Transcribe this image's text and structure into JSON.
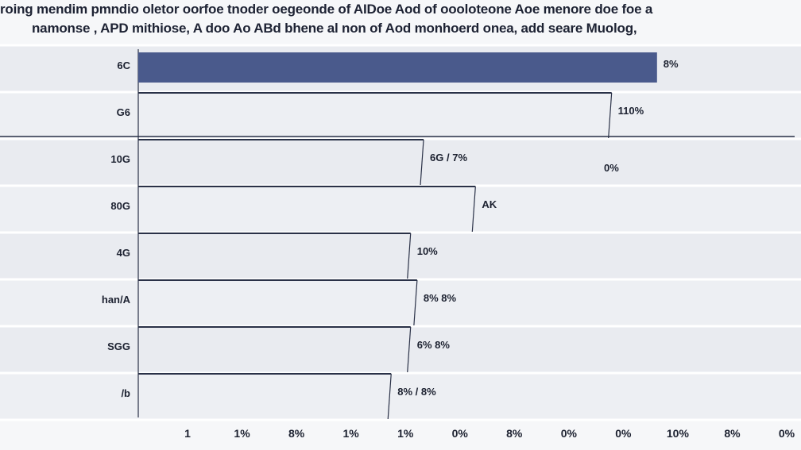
{
  "title": {
    "line1": "roing mendim pmndio oletor oorfoe tnoder oegeonde of AIDoe Aod of oooloteone Aoe menore doe foe a",
    "line2": "namonse , APD mithiose,        A doo Ao ABd bhene al non of Aod monhoerd onea, add seare Muolog,"
  },
  "chart_data": {
    "type": "bar",
    "orientation": "horizontal",
    "title": "roing mendim pmndio oletor oorfoe tnoder oegeonde of AIDoe Aod of oooloteone Aoe menore doe foe a namonse , APD mithiose, A doo Ao ABd bhene al non of Aod monhoerd onea, add seare Muolog,",
    "categories": [
      "6C",
      "G6",
      "10G",
      "80G",
      "4G",
      "han/A",
      "SGG",
      "/b"
    ],
    "values": [
      80,
      73,
      44,
      52,
      42,
      43,
      42,
      39
    ],
    "value_labels": [
      "8%",
      "110%",
      "6G / 7%",
      "AK",
      "10%",
      "8% 8%",
      "6% 8%",
      "8% / 8%"
    ],
    "extra_labels": [
      "0%"
    ],
    "x_ticks": [
      "1",
      "1%",
      "8%",
      "1%",
      "1%",
      "0%",
      "8%",
      "0%",
      "0%",
      "10%",
      "8%",
      "0%"
    ],
    "xlim": [
      0,
      100
    ],
    "highlight_series_color": "#4a5a8c",
    "line_color": "#2a3147",
    "grid": true,
    "legend": "none"
  }
}
